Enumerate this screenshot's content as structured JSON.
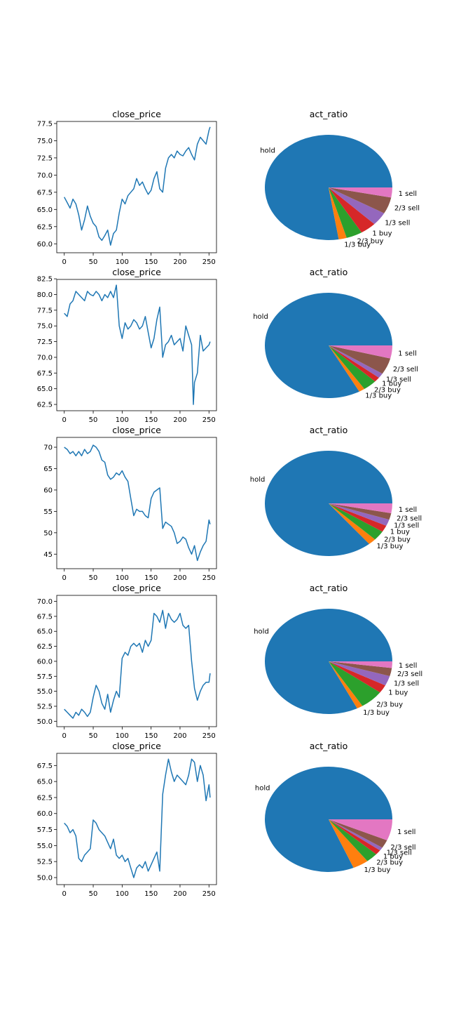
{
  "chart_data": [
    {
      "type": "line",
      "title": "close_price",
      "xlim": [
        -13,
        263
      ],
      "ylim": [
        58.7,
        77.8
      ],
      "xticks": [
        0,
        50,
        100,
        150,
        200,
        250
      ],
      "xtick_labels": [
        "0",
        "50",
        "100",
        "150",
        "200",
        "250"
      ],
      "yticks": [
        60.0,
        62.5,
        65.0,
        67.5,
        70.0,
        72.5,
        75.0,
        77.5
      ],
      "ytick_labels": [
        "60.0",
        "62.5",
        "65.0",
        "67.5",
        "70.0",
        "72.5",
        "75.0",
        "77.5"
      ],
      "x": [
        0,
        5,
        10,
        15,
        20,
        25,
        30,
        35,
        40,
        45,
        50,
        55,
        60,
        65,
        70,
        75,
        80,
        85,
        90,
        95,
        100,
        105,
        110,
        115,
        120,
        125,
        130,
        135,
        140,
        145,
        150,
        155,
        160,
        165,
        170,
        175,
        180,
        185,
        190,
        195,
        200,
        205,
        210,
        215,
        220,
        225,
        230,
        235,
        240,
        245,
        250,
        252
      ],
      "series": [
        {
          "values": [
            66.8,
            66.0,
            65.2,
            66.5,
            65.8,
            64.2,
            62.0,
            63.5,
            65.5,
            64.0,
            63.0,
            62.5,
            61.0,
            60.5,
            61.2,
            62.0,
            59.8,
            61.5,
            62.0,
            64.5,
            66.5,
            65.8,
            67.0,
            67.5,
            68.0,
            69.5,
            68.5,
            69.0,
            68.0,
            67.2,
            67.8,
            69.5,
            70.5,
            68.0,
            67.5,
            71.0,
            72.5,
            73.0,
            72.5,
            73.5,
            73.0,
            72.8,
            73.5,
            74.0,
            73.0,
            72.2,
            74.5,
            75.5,
            75.0,
            74.5,
            76.5,
            77.0
          ]
        }
      ]
    },
    {
      "type": "pie",
      "title": "act_ratio",
      "labels": [
        "hold",
        "1/3 buy",
        "2/3 buy",
        "1 buy",
        "1/3 sell",
        "2/3 sell",
        "1 sell"
      ],
      "values": [
        76.0,
        2.0,
        4.0,
        4.0,
        4.0,
        5.0,
        3.0
      ],
      "colors": [
        "#1f77b4",
        "#ff7f0e",
        "#2ca02c",
        "#d62728",
        "#9467bd",
        "#8c564b",
        "#e377c2"
      ]
    },
    {
      "type": "line",
      "title": "close_price",
      "xlim": [
        -13,
        263
      ],
      "ylim": [
        61.5,
        82.4
      ],
      "xticks": [
        0,
        50,
        100,
        150,
        200,
        250
      ],
      "xtick_labels": [
        "0",
        "50",
        "100",
        "150",
        "200",
        "250"
      ],
      "yticks": [
        62.5,
        65.0,
        67.5,
        70.0,
        72.5,
        75.0,
        77.5,
        80.0,
        82.5
      ],
      "ytick_labels": [
        "62.5",
        "65.0",
        "67.5",
        "70.0",
        "72.5",
        "75.0",
        "77.5",
        "80.0",
        "82.5"
      ],
      "x": [
        0,
        5,
        10,
        15,
        20,
        25,
        30,
        35,
        40,
        45,
        50,
        55,
        60,
        65,
        70,
        75,
        80,
        85,
        90,
        95,
        100,
        105,
        110,
        115,
        120,
        125,
        130,
        135,
        140,
        145,
        150,
        155,
        160,
        165,
        170,
        175,
        180,
        185,
        190,
        195,
        200,
        205,
        210,
        215,
        220,
        223,
        225,
        230,
        235,
        240,
        245,
        250,
        252
      ],
      "series": [
        {
          "values": [
            77.0,
            76.5,
            78.5,
            79.0,
            80.5,
            80.0,
            79.5,
            79.0,
            80.5,
            80.0,
            79.8,
            80.5,
            80.0,
            79.0,
            80.0,
            79.5,
            80.5,
            79.5,
            81.5,
            75.0,
            73.0,
            75.5,
            74.5,
            75.0,
            76.0,
            75.5,
            74.5,
            75.0,
            76.5,
            74.0,
            71.5,
            73.0,
            76.0,
            78.0,
            70.0,
            72.0,
            72.5,
            73.5,
            72.0,
            72.5,
            73.0,
            71.0,
            75.0,
            73.5,
            72.0,
            62.5,
            66.0,
            67.5,
            73.5,
            71.0,
            71.5,
            72.0,
            72.5
          ]
        }
      ]
    },
    {
      "type": "pie",
      "title": "act_ratio",
      "labels": [
        "hold",
        "1/3 buy",
        "2/3 buy",
        "1 buy",
        "1/3 sell",
        "2/3 sell",
        "1 sell"
      ],
      "values": [
        83.0,
        1.5,
        3.5,
        1.5,
        1.5,
        5.0,
        4.0
      ],
      "colors": [
        "#1f77b4",
        "#ff7f0e",
        "#2ca02c",
        "#d62728",
        "#9467bd",
        "#8c564b",
        "#e377c2"
      ]
    },
    {
      "type": "line",
      "title": "close_price",
      "xlim": [
        -13,
        263
      ],
      "ylim": [
        41.6,
        72.3
      ],
      "xticks": [
        0,
        50,
        100,
        150,
        200,
        250
      ],
      "xtick_labels": [
        "0",
        "50",
        "100",
        "150",
        "200",
        "250"
      ],
      "yticks": [
        45,
        50,
        55,
        60,
        65,
        70
      ],
      "ytick_labels": [
        "45",
        "50",
        "55",
        "60",
        "65",
        "70"
      ],
      "x": [
        0,
        5,
        10,
        15,
        20,
        25,
        30,
        35,
        40,
        45,
        50,
        55,
        60,
        65,
        70,
        75,
        80,
        85,
        90,
        95,
        100,
        105,
        110,
        115,
        120,
        125,
        130,
        135,
        140,
        145,
        150,
        155,
        160,
        165,
        170,
        175,
        180,
        185,
        190,
        195,
        200,
        205,
        210,
        215,
        220,
        225,
        230,
        235,
        240,
        245,
        250,
        252
      ],
      "series": [
        {
          "values": [
            70.0,
            69.5,
            68.5,
            69.0,
            68.0,
            69.0,
            68.0,
            69.5,
            68.5,
            69.0,
            70.5,
            70.0,
            69.0,
            67.0,
            66.5,
            63.5,
            62.5,
            63.0,
            64.0,
            63.5,
            64.5,
            63.0,
            62.0,
            58.0,
            54.0,
            55.5,
            55.0,
            55.0,
            54.0,
            53.5,
            58.0,
            59.5,
            60.0,
            60.5,
            51.0,
            52.5,
            52.0,
            51.5,
            50.0,
            47.5,
            48.0,
            49.0,
            48.5,
            46.5,
            45.0,
            47.0,
            43.5,
            45.5,
            47.0,
            48.0,
            53.0,
            52.0
          ]
        }
      ]
    },
    {
      "type": "pie",
      "title": "act_ratio",
      "labels": [
        "hold",
        "1/3 buy",
        "2/3 buy",
        "1 buy",
        "1/3 sell",
        "2/3 sell",
        "1 sell"
      ],
      "values": [
        86.0,
        2.0,
        3.0,
        2.0,
        2.0,
        2.0,
        3.0
      ],
      "colors": [
        "#1f77b4",
        "#ff7f0e",
        "#2ca02c",
        "#d62728",
        "#9467bd",
        "#8c564b",
        "#e377c2"
      ]
    },
    {
      "type": "line",
      "title": "close_price",
      "xlim": [
        -13,
        263
      ],
      "ylim": [
        49.1,
        71.0
      ],
      "xticks": [
        0,
        50,
        100,
        150,
        200,
        250
      ],
      "xtick_labels": [
        "0",
        "50",
        "100",
        "150",
        "200",
        "250"
      ],
      "yticks": [
        50.0,
        52.5,
        55.0,
        57.5,
        60.0,
        62.5,
        65.0,
        67.5,
        70.0
      ],
      "ytick_labels": [
        "50.0",
        "52.5",
        "55.0",
        "57.5",
        "60.0",
        "62.5",
        "65.0",
        "67.5",
        "70.0"
      ],
      "x": [
        0,
        5,
        10,
        15,
        20,
        25,
        30,
        35,
        40,
        45,
        50,
        55,
        60,
        65,
        70,
        75,
        80,
        85,
        90,
        95,
        100,
        105,
        110,
        115,
        120,
        125,
        130,
        135,
        140,
        145,
        150,
        155,
        160,
        165,
        170,
        175,
        180,
        185,
        190,
        195,
        200,
        205,
        210,
        215,
        220,
        225,
        230,
        235,
        240,
        245,
        250,
        252
      ],
      "series": [
        {
          "values": [
            52.0,
            51.5,
            51.0,
            50.5,
            51.5,
            51.0,
            52.0,
            51.5,
            50.8,
            51.5,
            54.0,
            56.0,
            55.0,
            53.0,
            52.0,
            54.5,
            51.5,
            53.5,
            55.0,
            54.0,
            60.5,
            61.5,
            61.0,
            62.5,
            63.0,
            62.5,
            63.0,
            61.5,
            63.5,
            62.5,
            63.5,
            68.0,
            67.5,
            66.5,
            68.5,
            65.5,
            68.0,
            67.0,
            66.5,
            67.0,
            68.0,
            66.0,
            65.5,
            66.0,
            60.0,
            55.5,
            53.5,
            55.0,
            56.0,
            56.5,
            56.5,
            58.0
          ]
        }
      ]
    },
    {
      "type": "pie",
      "title": "act_ratio",
      "labels": [
        "hold",
        "1/3 buy",
        "2/3 buy",
        "1 buy",
        "1/3 sell",
        "2/3 sell",
        "1 sell"
      ],
      "values": [
        82.0,
        1.5,
        6.0,
        2.5,
        3.0,
        2.5,
        2.0
      ],
      "colors": [
        "#1f77b4",
        "#ff7f0e",
        "#2ca02c",
        "#d62728",
        "#9467bd",
        "#8c564b",
        "#e377c2"
      ]
    },
    {
      "type": "line",
      "title": "close_price",
      "xlim": [
        -13,
        263
      ],
      "ylim": [
        48.9,
        69.4
      ],
      "xticks": [
        0,
        50,
        100,
        150,
        200,
        250
      ],
      "xtick_labels": [
        "0",
        "50",
        "100",
        "150",
        "200",
        "250"
      ],
      "yticks": [
        50.0,
        52.5,
        55.0,
        57.5,
        60.0,
        62.5,
        65.0,
        67.5
      ],
      "ytick_labels": [
        "50.0",
        "52.5",
        "55.0",
        "57.5",
        "60.0",
        "62.5",
        "65.0",
        "67.5"
      ],
      "x": [
        0,
        5,
        10,
        15,
        20,
        25,
        30,
        35,
        40,
        45,
        50,
        55,
        60,
        65,
        70,
        75,
        80,
        85,
        90,
        95,
        100,
        105,
        110,
        115,
        120,
        125,
        130,
        135,
        140,
        145,
        150,
        155,
        160,
        165,
        170,
        175,
        180,
        185,
        190,
        195,
        200,
        205,
        210,
        215,
        220,
        225,
        230,
        235,
        240,
        245,
        250,
        252
      ],
      "series": [
        {
          "values": [
            58.5,
            58.0,
            57.0,
            57.5,
            56.5,
            53.0,
            52.5,
            53.5,
            54.0,
            54.5,
            59.0,
            58.5,
            57.5,
            57.0,
            56.5,
            55.5,
            54.5,
            56.0,
            53.5,
            53.0,
            53.5,
            52.5,
            53.0,
            51.5,
            50.0,
            51.5,
            52.0,
            51.5,
            52.5,
            51.0,
            52.0,
            53.0,
            54.0,
            51.0,
            63.0,
            66.0,
            68.5,
            66.5,
            65.0,
            66.0,
            65.5,
            65.0,
            64.5,
            66.0,
            68.5,
            68.0,
            65.0,
            67.5,
            66.0,
            62.0,
            64.5,
            62.5
          ]
        }
      ]
    },
    {
      "type": "pie",
      "title": "act_ratio",
      "labels": [
        "hold",
        "1/3 buy",
        "2/3 buy",
        "1 buy",
        "1/3 sell",
        "2/3 sell",
        "1 sell"
      ],
      "values": [
        81.0,
        4.0,
        3.0,
        1.5,
        1.0,
        2.5,
        6.5
      ],
      "colors": [
        "#1f77b4",
        "#ff7f0e",
        "#2ca02c",
        "#d62728",
        "#9467bd",
        "#8c564b",
        "#e377c2"
      ]
    }
  ]
}
